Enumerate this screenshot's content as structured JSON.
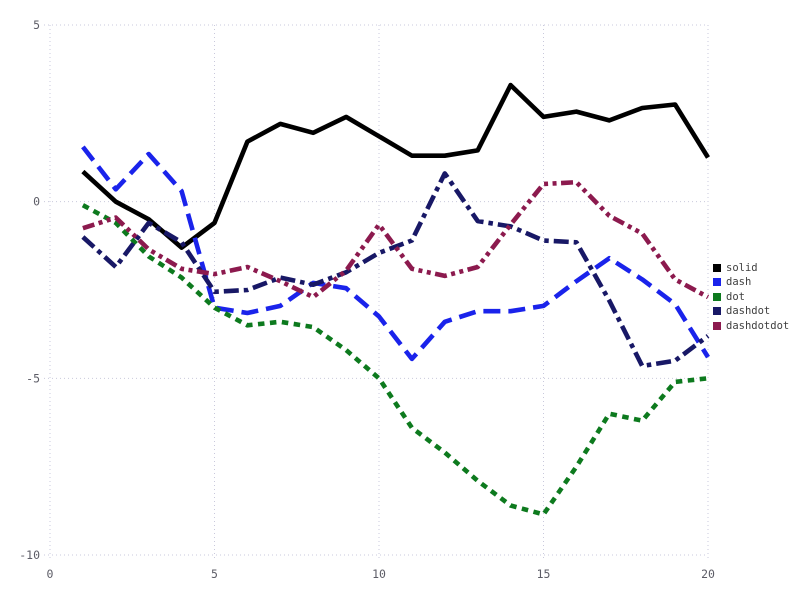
{
  "chart_data": {
    "type": "line",
    "title": "",
    "xlabel": "",
    "ylabel": "",
    "xlim": [
      0,
      20
    ],
    "ylim": [
      -10,
      5
    ],
    "x_ticks": [
      "0",
      "5",
      "10",
      "15",
      "20"
    ],
    "x_tick_values": [
      0,
      5,
      10,
      15,
      20
    ],
    "y_ticks": [
      "5",
      "0",
      "-5",
      "-10"
    ],
    "y_tick_values": [
      5,
      0,
      -5,
      -10
    ],
    "grid": true,
    "legend_position": "right",
    "x": [
      1,
      2,
      3,
      4,
      5,
      6,
      7,
      8,
      9,
      10,
      11,
      12,
      13,
      14,
      15,
      16,
      17,
      18,
      19,
      20
    ],
    "series": [
      {
        "name": "solid",
        "color": "#000000",
        "linestyle": "solid",
        "values": [
          0.85,
          0.0,
          -0.5,
          -1.3,
          -0.6,
          1.7,
          2.2,
          1.95,
          2.4,
          1.85,
          1.3,
          1.3,
          1.45,
          3.3,
          2.4,
          2.55,
          2.3,
          2.65,
          2.75,
          1.25
        ]
      },
      {
        "name": "dash",
        "color": "#1a23eb",
        "linestyle": "dash",
        "values": [
          1.55,
          0.35,
          1.35,
          0.3,
          -3.0,
          -3.15,
          -2.95,
          -2.3,
          -2.45,
          -3.25,
          -4.45,
          -3.4,
          -3.1,
          -3.1,
          -2.95,
          -2.25,
          -1.6,
          -2.2,
          -2.9,
          -4.4
        ]
      },
      {
        "name": "dot",
        "color": "#0d7a1e",
        "linestyle": "dot",
        "values": [
          -0.1,
          -0.6,
          -1.55,
          -2.15,
          -3.0,
          -3.5,
          -3.4,
          -3.55,
          -4.2,
          -5.0,
          -6.4,
          -7.1,
          -7.9,
          -8.6,
          -8.85,
          -7.5,
          -6.0,
          -6.2,
          -5.1,
          -5.0
        ]
      },
      {
        "name": "dashdot",
        "color": "#181866",
        "linestyle": "dashdot",
        "values": [
          -1.0,
          -1.85,
          -0.6,
          -1.15,
          -2.55,
          -2.5,
          -2.15,
          -2.35,
          -2.0,
          -1.45,
          -1.1,
          0.8,
          -0.55,
          -0.7,
          -1.1,
          -1.15,
          -2.8,
          -4.65,
          -4.5,
          -3.8
        ]
      },
      {
        "name": "dashdotdot",
        "color": "#8c1a4e",
        "linestyle": "dashdotdot",
        "values": [
          -0.75,
          -0.45,
          -1.35,
          -1.9,
          -2.05,
          -1.85,
          -2.25,
          -2.7,
          -1.95,
          -0.65,
          -1.9,
          -2.1,
          -1.85,
          -0.65,
          0.5,
          0.55,
          -0.4,
          -0.9,
          -2.2,
          -2.7
        ]
      }
    ],
    "legend_entries": [
      "solid",
      "dash",
      "dot",
      "dashdot",
      "dashdotdot"
    ]
  },
  "styles": {
    "grid_color": "#c9c9dc",
    "tick_label_color": "#5c5c66",
    "legend_text_color": "#3f3f3f",
    "background": "#ffffff"
  }
}
